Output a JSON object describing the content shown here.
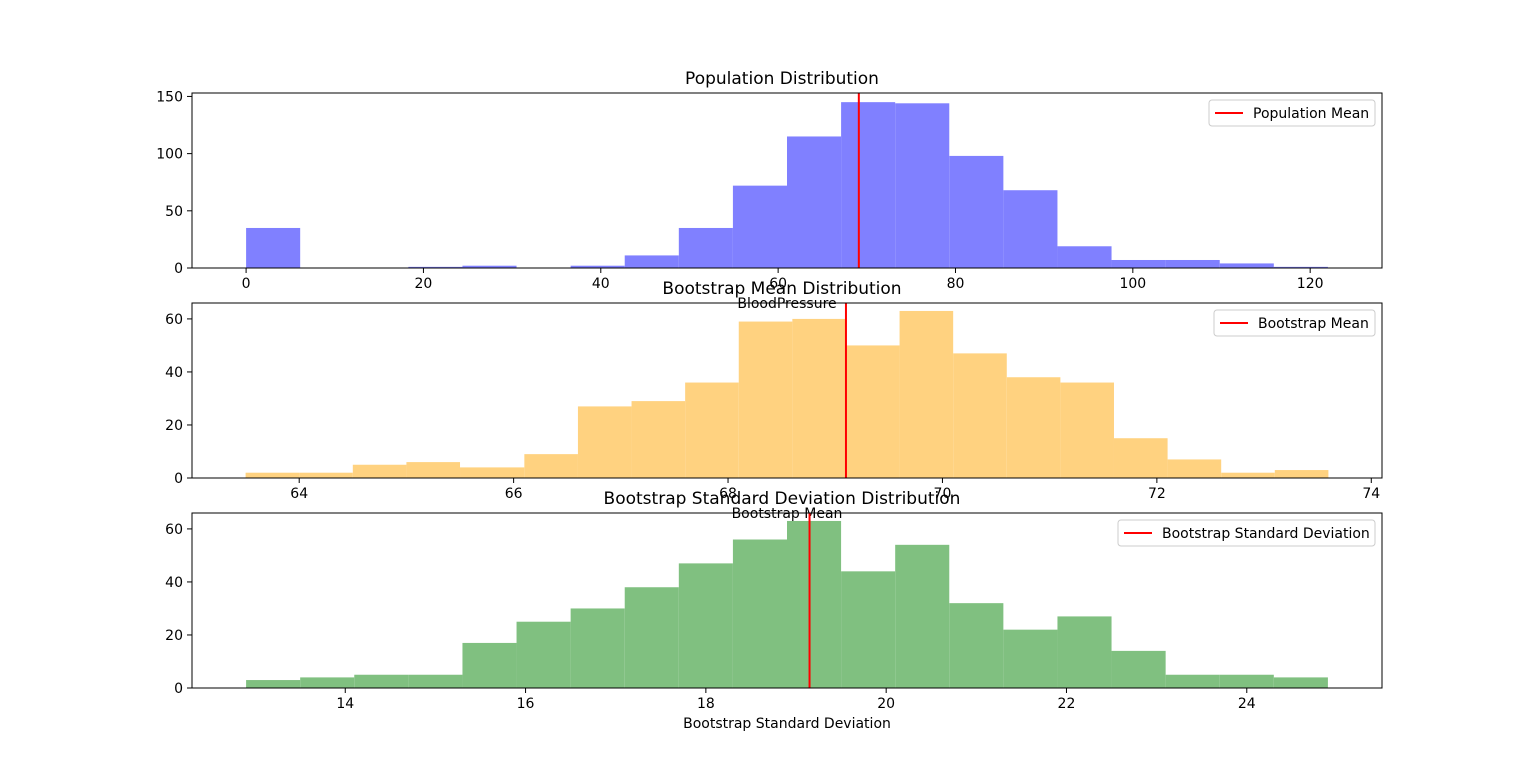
{
  "chart_data": [
    {
      "type": "bar",
      "title": "Population Distribution",
      "xlabel": "BloodPressure",
      "ylabel": "",
      "bin_edges": [
        0,
        6.1,
        12.2,
        18.3,
        24.4,
        30.5,
        36.6,
        42.7,
        48.8,
        54.9,
        61.0,
        67.1,
        73.2,
        79.3,
        85.4,
        91.5,
        97.6,
        103.7,
        109.8,
        115.9,
        122.0
      ],
      "values": [
        35,
        0,
        0,
        1,
        2,
        0,
        2,
        11,
        35,
        72,
        115,
        145,
        144,
        98,
        68,
        19,
        7,
        7,
        4,
        1
      ],
      "bar_color": "#8080ff",
      "mean_line": {
        "value": 69.1,
        "label": "Population Mean",
        "color": "#ff0000"
      },
      "xlim": [
        -6.1,
        128.1
      ],
      "ylim": [
        0,
        153
      ],
      "xticks": [
        0,
        20,
        40,
        60,
        80,
        100,
        120
      ],
      "yticks": [
        0,
        50,
        100,
        150
      ],
      "legend_position": "top-right",
      "grid": false
    },
    {
      "type": "bar",
      "title": "Bootstrap Mean Distribution",
      "xlabel": "Bootstrap Mean",
      "ylabel": "",
      "bin_edges": [
        63.5,
        64.0,
        64.5,
        65.0,
        65.5,
        66.1,
        66.6,
        67.1,
        67.6,
        68.1,
        68.6,
        69.1,
        69.6,
        70.1,
        70.6,
        71.1,
        71.6,
        72.1,
        72.6,
        73.1,
        73.6
      ],
      "values": [
        2,
        2,
        5,
        6,
        4,
        9,
        27,
        29,
        36,
        59,
        60,
        50,
        63,
        47,
        38,
        36,
        15,
        7,
        2,
        3
      ],
      "bar_color": "#ffd280",
      "mean_line": {
        "value": 69.1,
        "label": "Bootstrap Mean",
        "color": "#ff0000"
      },
      "xlim": [
        63.0,
        74.1
      ],
      "ylim": [
        0,
        66
      ],
      "xticks": [
        64,
        66,
        68,
        70,
        72,
        74
      ],
      "yticks": [
        0,
        20,
        40,
        60
      ],
      "legend_position": "top-right",
      "grid": false
    },
    {
      "type": "bar",
      "title": "Bootstrap Standard Deviation Distribution",
      "xlabel": "Bootstrap Standard Deviation",
      "ylabel": "",
      "bin_edges": [
        12.9,
        13.5,
        14.1,
        14.7,
        15.3,
        15.9,
        16.5,
        17.1,
        17.7,
        18.3,
        18.9,
        19.5,
        20.1,
        20.7,
        21.3,
        21.9,
        22.5,
        23.1,
        23.7,
        24.3,
        24.9
      ],
      "values": [
        3,
        4,
        5,
        5,
        17,
        25,
        30,
        38,
        47,
        56,
        63,
        44,
        54,
        32,
        22,
        27,
        14,
        5,
        5,
        4
      ],
      "bar_color": "#80c080",
      "mean_line": {
        "value": 19.15,
        "label": "Bootstrap Standard Deviation",
        "color": "#ff0000"
      },
      "xlim": [
        12.3,
        25.5
      ],
      "ylim": [
        0,
        66
      ],
      "xticks": [
        14,
        16,
        18,
        20,
        22,
        24
      ],
      "yticks": [
        0,
        20,
        40,
        60
      ],
      "legend_position": "top-right",
      "grid": false
    }
  ]
}
